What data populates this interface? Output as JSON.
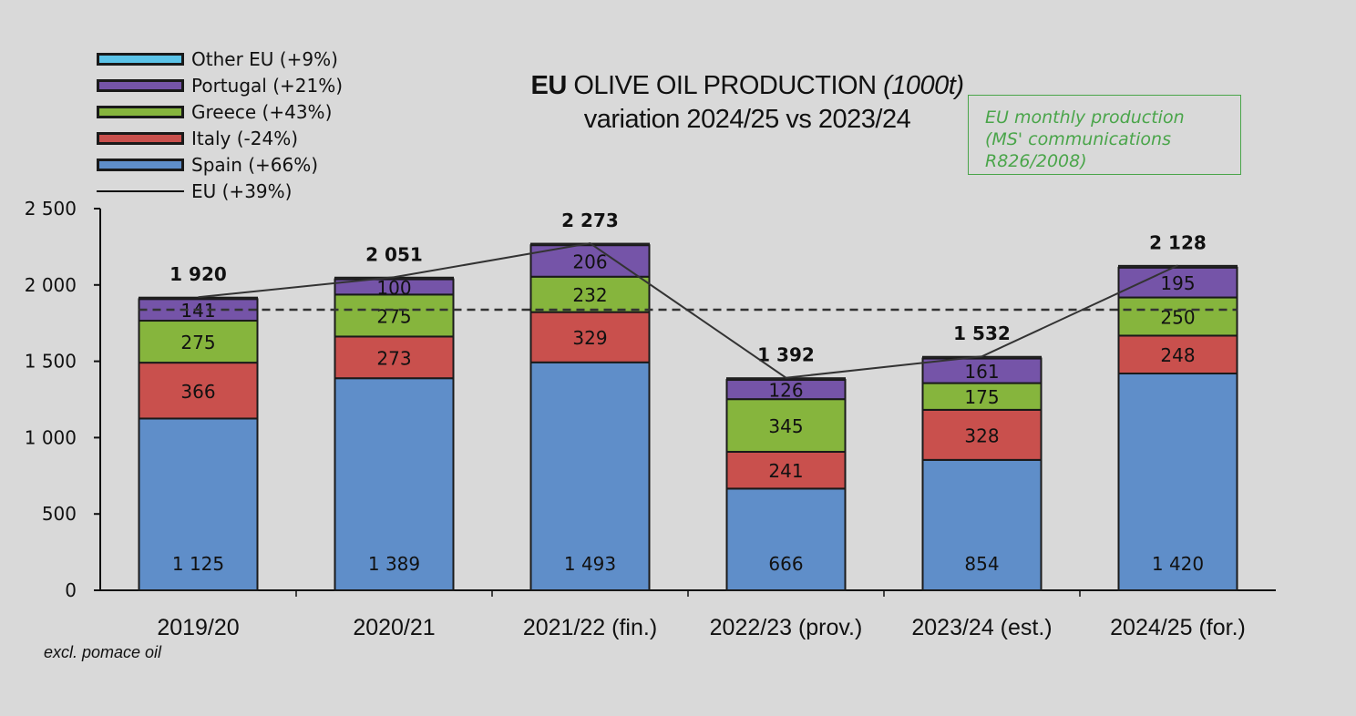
{
  "title": {
    "bold": "EU",
    "main": " OLIVE OIL PRODUCTION ",
    "unit": "(1000t)",
    "subtitle": "variation 2024/25 vs 2023/24"
  },
  "note": {
    "lines": [
      "EU monthly production",
      "(MS' communications",
      "R826/2008)"
    ],
    "color": "#4aa54a"
  },
  "footnote": "excl. pomace oil",
  "legend": [
    {
      "label": "Other EU (+9%)",
      "type": "bar",
      "color": "#5bc3e8"
    },
    {
      "label": "Portugal (+21%)",
      "type": "bar",
      "color": "#7554a8"
    },
    {
      "label": "Greece (+43%)",
      "type": "bar",
      "color": "#86b53d"
    },
    {
      "label": "Italy (-24%)",
      "type": "bar",
      "color": "#c9504d"
    },
    {
      "label": "Spain (+66%)",
      "type": "bar",
      "color": "#5f8ec9"
    },
    {
      "label": "EU (+39%)",
      "type": "line",
      "color": "#333333"
    }
  ],
  "chart_data": {
    "type": "bar",
    "stacked": true,
    "categories": [
      "2019/20",
      "2020/21",
      "2021/22 (fin.)",
      "2022/23 (prov.)",
      "2023/24 (est.)",
      "2024/25 (for.)"
    ],
    "series": [
      {
        "name": "Spain",
        "color": "#5f8ec9",
        "values": [
          1125,
          1389,
          1493,
          666,
          854,
          1420
        ],
        "labels": [
          "1 125",
          "1 389",
          "1 493",
          "666",
          "854",
          "1 420"
        ],
        "label_position": "bottom"
      },
      {
        "name": "Italy",
        "color": "#c9504d",
        "values": [
          366,
          273,
          329,
          241,
          328,
          248
        ],
        "labels": [
          "366",
          "273",
          "329",
          "241",
          "328",
          "248"
        ]
      },
      {
        "name": "Greece",
        "color": "#86b53d",
        "values": [
          275,
          275,
          232,
          345,
          175,
          250
        ],
        "labels": [
          "275",
          "275",
          "232",
          "345",
          "175",
          "250"
        ]
      },
      {
        "name": "Portugal",
        "color": "#7554a8",
        "values": [
          141,
          100,
          206,
          126,
          161,
          195
        ],
        "labels": [
          "141",
          "100",
          "206",
          "126",
          "161",
          "195"
        ]
      },
      {
        "name": "Other EU",
        "color": "#5bc3e8",
        "values": [
          13,
          14,
          13,
          14,
          14,
          15
        ],
        "labels": []
      }
    ],
    "totals": [
      1920,
      2051,
      2273,
      1392,
      1532,
      2128
    ],
    "total_labels": [
      "1 920",
      "2 051",
      "2 273",
      "1 392",
      "1 532",
      "2 128"
    ],
    "eu_line": {
      "name": "EU (+39%)",
      "values": [
        1920,
        2051,
        2273,
        1392,
        1532,
        2128
      ]
    },
    "average_line": {
      "value": 1838,
      "style": "dashed"
    },
    "ylim": [
      0,
      2500
    ],
    "yticks": [
      0,
      500,
      1000,
      1500,
      2000,
      2500
    ],
    "ytick_labels": [
      "0",
      "500",
      "1 000",
      "1 500",
      "2 000",
      "2 500"
    ],
    "xlabel": "",
    "ylabel": ""
  }
}
